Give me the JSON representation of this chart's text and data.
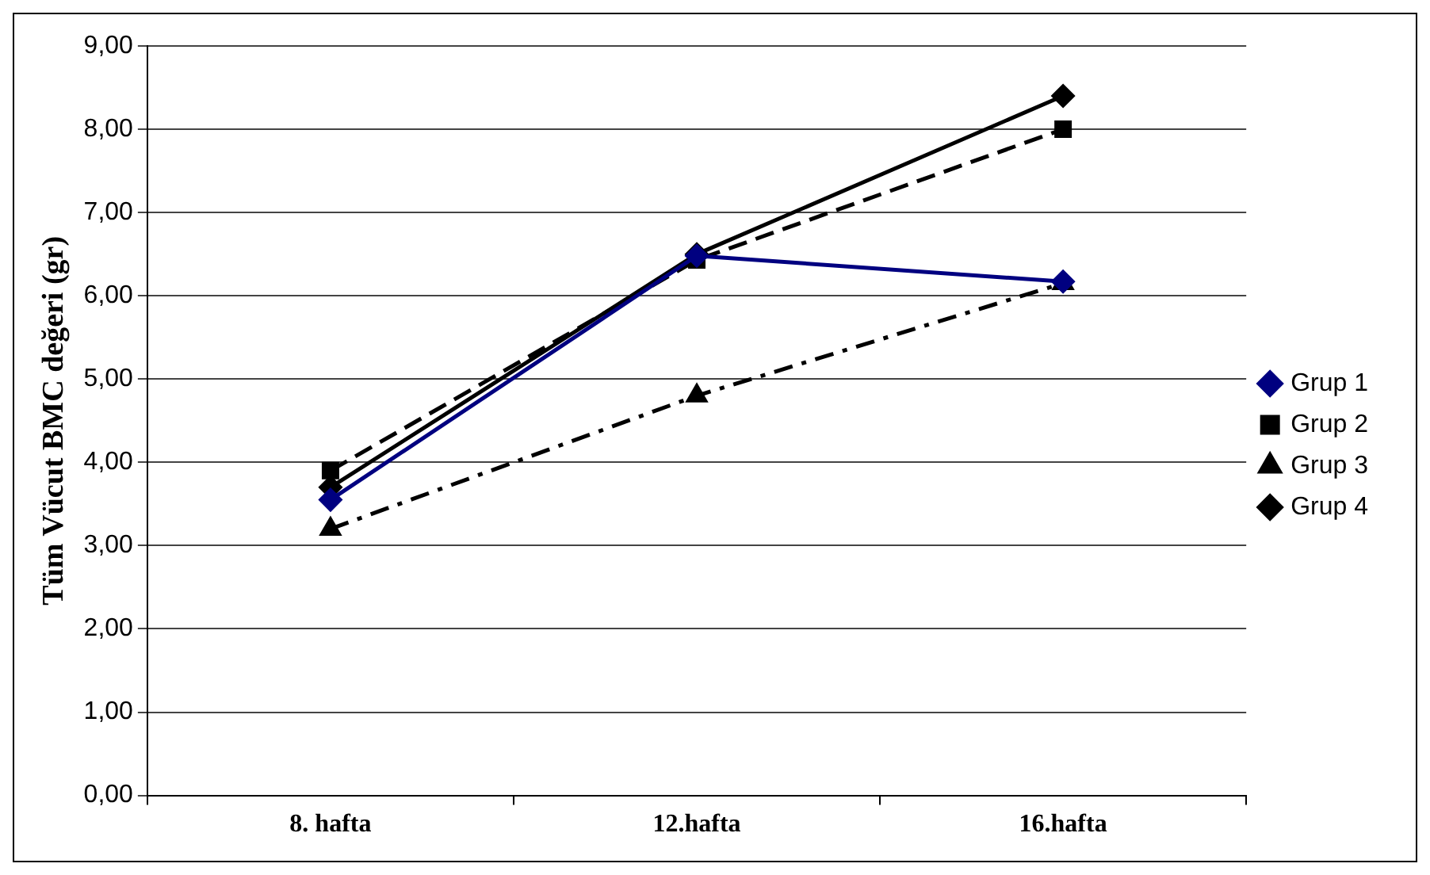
{
  "chart_data": {
    "type": "line",
    "ylabel": "Tüm Vücut BMC değeri (gr)",
    "categories": [
      "8. hafta",
      "12.hafta",
      "16.hafta"
    ],
    "series": [
      {
        "name": "Grup 1",
        "color": "#000080",
        "values": [
          3.55,
          6.48,
          6.17
        ],
        "marker": "diamond",
        "line_style": "solid"
      },
      {
        "name": "Grup 2",
        "color": "#000000",
        "values": [
          3.9,
          6.43,
          8.0
        ],
        "marker": "square",
        "line_style": "dashed"
      },
      {
        "name": "Grup 3",
        "color": "#000000",
        "values": [
          3.2,
          4.8,
          6.15
        ],
        "marker": "triangle",
        "line_style": "dashdot"
      },
      {
        "name": "Grup 4",
        "color": "#000000",
        "values": [
          3.7,
          6.5,
          8.4
        ],
        "marker": "diamond",
        "line_style": "solid"
      }
    ],
    "ylim": [
      0,
      9
    ],
    "yticks": [
      {
        "value": 0,
        "label": "0,00"
      },
      {
        "value": 1,
        "label": "1,00"
      },
      {
        "value": 2,
        "label": "2,00"
      },
      {
        "value": 3,
        "label": "3,00"
      },
      {
        "value": 4,
        "label": "4,00"
      },
      {
        "value": 5,
        "label": "5,00"
      },
      {
        "value": 6,
        "label": "6,00"
      },
      {
        "value": 7,
        "label": "7,00"
      },
      {
        "value": 8,
        "label": "8,00"
      },
      {
        "value": 9,
        "label": "9,00"
      }
    ],
    "grid": "y",
    "legend": "right"
  }
}
